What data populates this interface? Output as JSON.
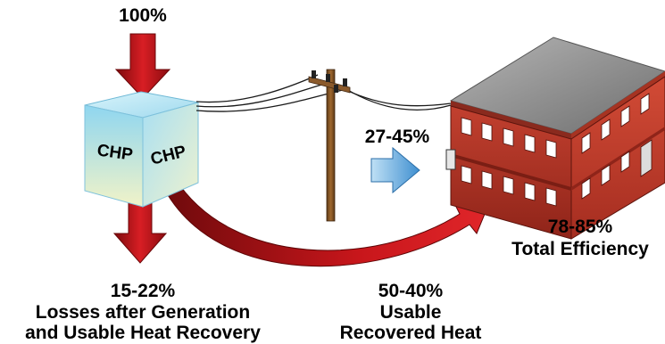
{
  "labels": {
    "input": "100%",
    "electricity": "27-45%",
    "losses_pct": "15-22%",
    "losses_line1": "Losses after Generation",
    "losses_line2": "and Usable Heat Recovery",
    "heat_pct": "50-40%",
    "heat_line1": "Usable",
    "heat_line2": "Recovered Heat",
    "total_pct": "78-85%",
    "total_line": "Total Efficiency"
  },
  "chp_unit": {
    "left_face": "CHP",
    "right_face": "CHP"
  },
  "colors": {
    "arrow_red": "#c0141a",
    "cube_face": "#cfe9ef",
    "brick": "#c43a2a",
    "roof": "#8a8a8a",
    "pole": "#8b5a2b",
    "blue_arrow": "#5aa8de"
  }
}
